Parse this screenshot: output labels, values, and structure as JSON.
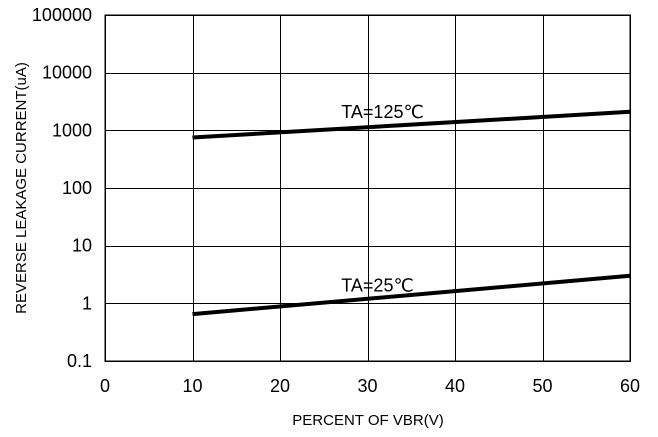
{
  "chart_data": {
    "type": "line",
    "title": "",
    "xlabel": "PERCENT OF VBR(V)",
    "ylabel": "REVERSE LEAKAGE CURRENT(uA)",
    "xlim": [
      0,
      60
    ],
    "ylim": [
      0.1,
      100000
    ],
    "yscale": "log",
    "grid": true,
    "x_ticks": [
      0,
      10,
      20,
      30,
      40,
      50,
      60
    ],
    "x_tick_labels": [
      "0",
      "10",
      "20",
      "30",
      "40",
      "50",
      "60"
    ],
    "y_ticks": [
      0.1,
      1,
      10,
      100,
      1000,
      10000,
      100000
    ],
    "y_tick_labels": [
      "0.1",
      "1",
      "10",
      "100",
      "1000",
      "10000",
      "100000"
    ],
    "series": [
      {
        "name": "TA=125℃",
        "x": [
          10,
          60
        ],
        "y": [
          750,
          2100
        ]
      },
      {
        "name": "TA=25℃",
        "x": [
          10,
          60
        ],
        "y": [
          0.65,
          3.0
        ]
      }
    ],
    "annotations": [
      {
        "text": "TA=125℃",
        "series": 0,
        "x": 27,
        "y": 1650
      },
      {
        "text": "TA=25℃",
        "series": 1,
        "x": 27,
        "y": 1.6
      }
    ]
  }
}
